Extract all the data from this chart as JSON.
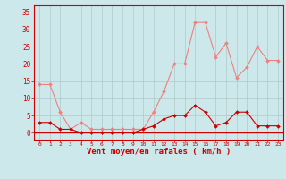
{
  "x": [
    0,
    1,
    2,
    3,
    4,
    5,
    6,
    7,
    8,
    9,
    10,
    11,
    12,
    13,
    14,
    15,
    16,
    17,
    18,
    19,
    20,
    21,
    22,
    23
  ],
  "rafales": [
    14,
    14,
    6,
    1,
    3,
    1,
    1,
    1,
    1,
    1,
    1,
    6,
    12,
    20,
    20,
    32,
    32,
    22,
    26,
    16,
    19,
    25,
    21,
    21
  ],
  "moyen": [
    3,
    3,
    1,
    1,
    0,
    0,
    0,
    0,
    0,
    0,
    1,
    2,
    4,
    5,
    5,
    8,
    6,
    2,
    3,
    6,
    6,
    2,
    2,
    2
  ],
  "line_color_rafales": "#f08080",
  "line_color_moyen": "#cc0000",
  "bg_color": "#cce8ea",
  "grid_color": "#b0c8c8",
  "xlabel": "Vent moyen/en rafales ( km/h )",
  "xlabel_color": "#cc0000",
  "tick_color": "#cc0000",
  "spine_color": "#cc0000",
  "ylim": [
    -2,
    37
  ],
  "yticks": [
    0,
    5,
    10,
    15,
    20,
    25,
    30,
    35
  ],
  "xlim": [
    -0.5,
    23.5
  ],
  "figwidth": 3.2,
  "figheight": 2.0,
  "dpi": 100
}
